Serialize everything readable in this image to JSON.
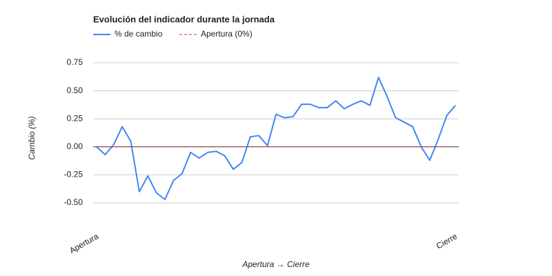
{
  "chart_data": {
    "type": "line",
    "title": "Evolución del indicador durante la jornada",
    "x_label": "Apertura → Cierre",
    "y_label": "Cambio (%)",
    "categories": [
      "Apertura",
      null,
      null,
      null,
      null,
      null,
      null,
      null,
      null,
      null,
      null,
      null,
      null,
      null,
      null,
      null,
      null,
      null,
      null,
      null,
      null,
      null,
      null,
      null,
      null,
      null,
      null,
      null,
      null,
      null,
      null,
      null,
      null,
      null,
      null,
      null,
      null,
      null,
      null,
      null,
      null,
      null,
      "Cierre"
    ],
    "series": [
      {
        "name": "% de cambio",
        "color": "#4285f4",
        "dashed": false,
        "values": [
          0.0,
          -0.07,
          0.02,
          0.18,
          0.05,
          -0.4,
          -0.26,
          -0.41,
          -0.47,
          -0.3,
          -0.24,
          -0.05,
          -0.1,
          -0.05,
          -0.04,
          -0.08,
          -0.2,
          -0.14,
          0.09,
          0.1,
          0.01,
          0.29,
          0.26,
          0.27,
          0.38,
          0.38,
          0.35,
          0.35,
          0.41,
          0.34,
          0.38,
          0.41,
          0.37,
          0.62,
          0.45,
          0.26,
          0.22,
          0.18,
          0.0,
          -0.12,
          0.07,
          0.28,
          0.37
        ]
      },
      {
        "name": "Apertura (0%)",
        "color": "#cc3333",
        "dashed": true,
        "values": [
          0,
          0,
          0,
          0,
          0,
          0,
          0,
          0,
          0,
          0,
          0,
          0,
          0,
          0,
          0,
          0,
          0,
          0,
          0,
          0,
          0,
          0,
          0,
          0,
          0,
          0,
          0,
          0,
          0,
          0,
          0,
          0,
          0,
          0,
          0,
          0,
          0,
          0,
          0,
          0,
          0,
          0,
          0
        ]
      }
    ],
    "ylim": [
      -0.5,
      0.75
    ],
    "yticks": [
      0.75,
      {
        "value": 0.5,
        "label": "0.50"
      },
      0.25,
      {
        "value": 0,
        "label": "0.00"
      },
      -0.25,
      {
        "value": -0.5,
        "label": "-0.50"
      }
    ],
    "grid": true
  }
}
